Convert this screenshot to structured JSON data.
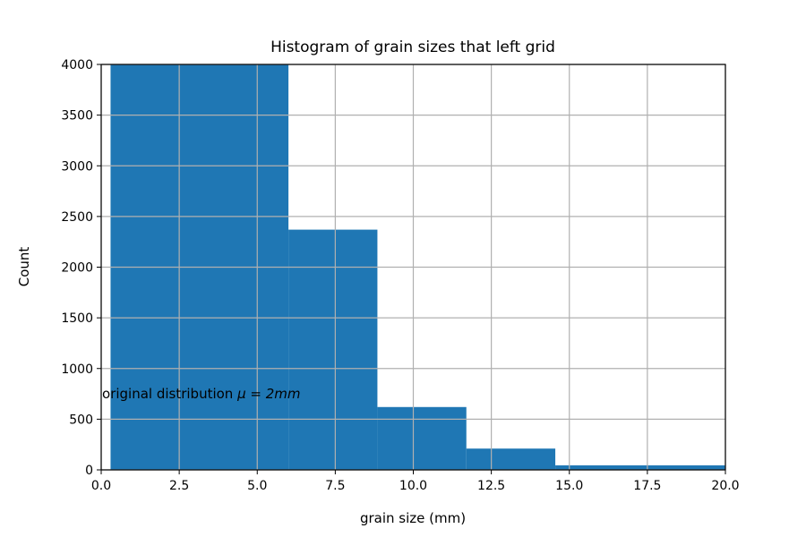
{
  "chart_data": {
    "type": "bar",
    "title": "Histogram of grain sizes that left grid",
    "xlabel": "grain size (mm)",
    "ylabel": "Count",
    "xlim": [
      0.0,
      20.0
    ],
    "ylim": [
      0,
      4000
    ],
    "xticks": [
      "0.0",
      "2.5",
      "5.0",
      "7.5",
      "10.0",
      "12.5",
      "15.0",
      "17.5",
      "20.0"
    ],
    "yticks": [
      "0",
      "500",
      "1000",
      "1500",
      "2000",
      "2500",
      "3000",
      "3500",
      "4000"
    ],
    "grid": true,
    "bar_color": "#1f77b4",
    "bins": [
      {
        "x0": 0.3,
        "x1": 6.0,
        "count": 4000
      },
      {
        "x0": 6.0,
        "x1": 8.85,
        "count": 2370
      },
      {
        "x0": 8.85,
        "x1": 11.7,
        "count": 620
      },
      {
        "x0": 11.7,
        "x1": 14.55,
        "count": 210
      },
      {
        "x0": 14.55,
        "x1": 20.0,
        "count": 45
      }
    ],
    "annotation": {
      "text_prefix": "original distribution ",
      "text_math": "μ = 2mm"
    }
  }
}
